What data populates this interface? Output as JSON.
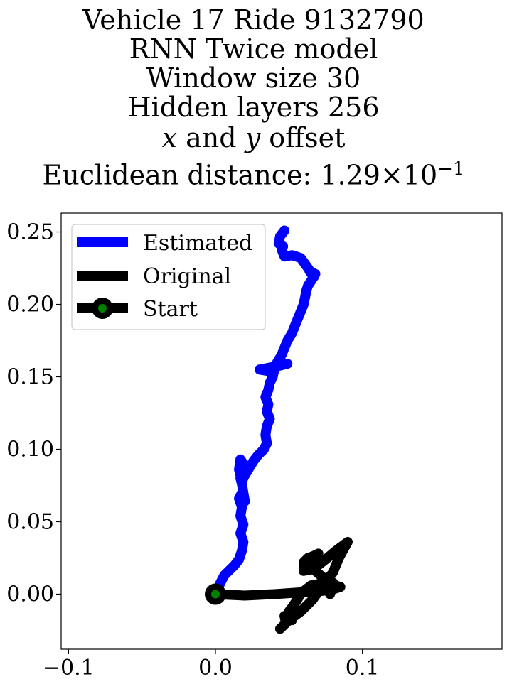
{
  "title": {
    "line1": "Vehicle 17 Ride 9132790",
    "line2": "RNN Twice model",
    "line3": "Window size 30",
    "line4": "Hidden layers 256",
    "line5_var_x": "x",
    "line5_and": "and",
    "line5_var_y": "y",
    "line5_rest": "offset",
    "line6_prefix": "Euclidean distance: 1.29",
    "line6_times": "×",
    "line6_base": "10",
    "line6_exp": "−1"
  },
  "chart_data": {
    "type": "line",
    "xlim": [
      -0.105,
      0.195
    ],
    "ylim": [
      -0.038,
      0.263
    ],
    "x_ticks": [
      -0.1,
      0.0,
      0.1
    ],
    "x_tick_labels": [
      "−0.1",
      "0.0",
      "0.1"
    ],
    "y_ticks": [
      0.0,
      0.05,
      0.1,
      0.15,
      0.2,
      0.25
    ],
    "y_tick_labels": [
      "0.00",
      "0.05",
      "0.10",
      "0.15",
      "0.20",
      "0.25"
    ],
    "grid": false,
    "legend_position": "upper-left",
    "legend": [
      "Estimated",
      "Original",
      "Start"
    ],
    "colors": {
      "estimated": "#0000ff",
      "original": "#000000",
      "start_fill": "#008000",
      "start_edge": "#000000"
    },
    "series": [
      {
        "name": "Estimated",
        "x": [
          0.0,
          0.003,
          0.006,
          0.01,
          0.013,
          0.016,
          0.018,
          0.019,
          0.017,
          0.019,
          0.017,
          0.018,
          0.016,
          0.018,
          0.02,
          0.018,
          0.017,
          0.019,
          0.021,
          0.019,
          0.017,
          0.016,
          0.018,
          0.02,
          0.023,
          0.026,
          0.029,
          0.033,
          0.035,
          0.034,
          0.035,
          0.037,
          0.035,
          0.036,
          0.034,
          0.036,
          0.037,
          0.039,
          0.04,
          0.041,
          0.049,
          0.041,
          0.045,
          0.03,
          0.036,
          0.04,
          0.042,
          0.045,
          0.047,
          0.049,
          0.052,
          0.054,
          0.056,
          0.058,
          0.06,
          0.061,
          0.062,
          0.063,
          0.065,
          0.068,
          0.064,
          0.067,
          0.063,
          0.058,
          0.052,
          0.047,
          0.045,
          0.046,
          0.043,
          0.044,
          0.047
        ],
        "y": [
          0.0,
          0.007,
          0.013,
          0.017,
          0.02,
          0.024,
          0.03,
          0.036,
          0.042,
          0.048,
          0.054,
          0.06,
          0.066,
          0.07,
          0.064,
          0.076,
          0.08,
          0.082,
          0.086,
          0.09,
          0.093,
          0.086,
          0.078,
          0.082,
          0.087,
          0.092,
          0.096,
          0.1,
          0.104,
          0.11,
          0.116,
          0.121,
          0.126,
          0.131,
          0.136,
          0.141,
          0.146,
          0.15,
          0.155,
          0.158,
          0.159,
          0.157,
          0.158,
          0.155,
          0.154,
          0.156,
          0.16,
          0.165,
          0.17,
          0.175,
          0.18,
          0.185,
          0.19,
          0.195,
          0.2,
          0.205,
          0.21,
          0.213,
          0.216,
          0.221,
          0.223,
          0.219,
          0.225,
          0.232,
          0.234,
          0.233,
          0.238,
          0.24,
          0.242,
          0.247,
          0.251
        ]
      },
      {
        "name": "Original",
        "x": [
          0.0,
          0.02,
          0.04,
          0.055,
          0.07,
          0.079,
          0.085,
          0.075,
          0.065,
          0.06,
          0.058,
          0.053,
          0.05,
          0.052,
          0.047,
          0.048,
          0.044,
          0.05,
          0.058,
          0.066,
          0.073,
          0.08,
          0.084,
          0.09,
          0.082,
          0.075,
          0.07,
          0.065,
          0.06,
          0.06,
          0.063,
          0.066,
          0.07,
          0.065,
          0.062,
          0.068,
          0.075,
          0.08,
          0.079,
          0.08,
          0.078
        ],
        "y": [
          0.0,
          -0.001,
          0.0,
          0.001,
          0.002,
          0.003,
          0.005,
          0.008,
          0.006,
          0.002,
          0.0,
          -0.008,
          -0.012,
          -0.018,
          -0.015,
          -0.02,
          -0.024,
          -0.018,
          -0.012,
          -0.004,
          0.006,
          0.015,
          0.025,
          0.036,
          0.03,
          0.024,
          0.02,
          0.017,
          0.016,
          0.022,
          0.025,
          0.026,
          0.028,
          0.024,
          0.02,
          0.016,
          0.01,
          0.006,
          0.003,
          0.008,
          0.0
        ]
      }
    ],
    "start_point": {
      "x": 0.0,
      "y": 0.0
    }
  }
}
